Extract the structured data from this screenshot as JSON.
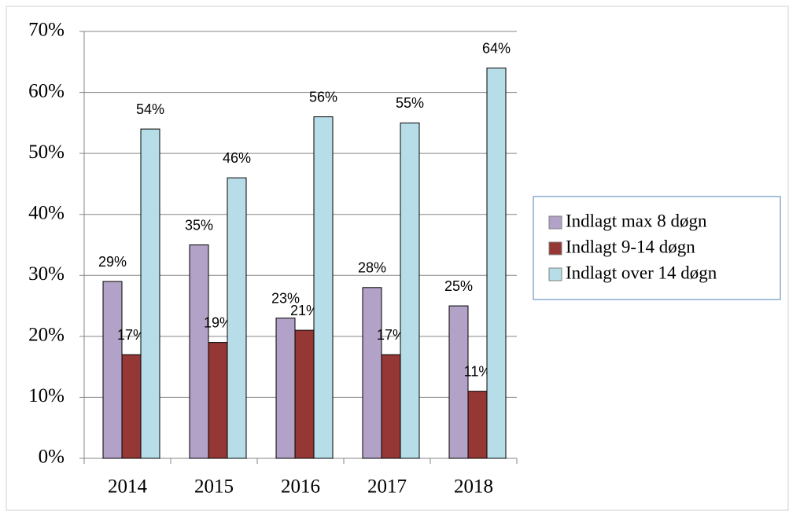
{
  "chart_data": {
    "type": "bar",
    "categories": [
      "2014",
      "2015",
      "2016",
      "2017",
      "2018"
    ],
    "series": [
      {
        "name": "Indlagt max 8 døgn",
        "color": "#b3a2c7",
        "values": [
          29,
          35,
          23,
          28,
          25
        ],
        "value_labels": [
          "29%",
          "35%",
          "23%",
          "28%",
          "25%"
        ]
      },
      {
        "name": "Indlagt 9-14 døgn",
        "color": "#953735",
        "values": [
          17,
          19,
          21,
          17,
          11
        ],
        "value_labels": [
          "17%",
          "19%",
          "21%",
          "17%",
          "11%"
        ]
      },
      {
        "name": "Indlagt over 14 døgn",
        "color": "#b7dee8",
        "values": [
          54,
          46,
          56,
          55,
          64
        ],
        "value_labels": [
          "54%",
          "46%",
          "56%",
          "55%",
          "64%"
        ]
      }
    ],
    "ylim": [
      0,
      70
    ],
    "yticks": [
      {
        "value": 0,
        "label": "0%"
      },
      {
        "value": 10,
        "label": "10%"
      },
      {
        "value": 20,
        "label": "20%"
      },
      {
        "value": 30,
        "label": "30%"
      },
      {
        "value": 40,
        "label": "40%"
      },
      {
        "value": 50,
        "label": "50%"
      },
      {
        "value": 60,
        "label": "60%"
      },
      {
        "value": 70,
        "label": "70%"
      }
    ],
    "grid": true,
    "legend": "right"
  }
}
